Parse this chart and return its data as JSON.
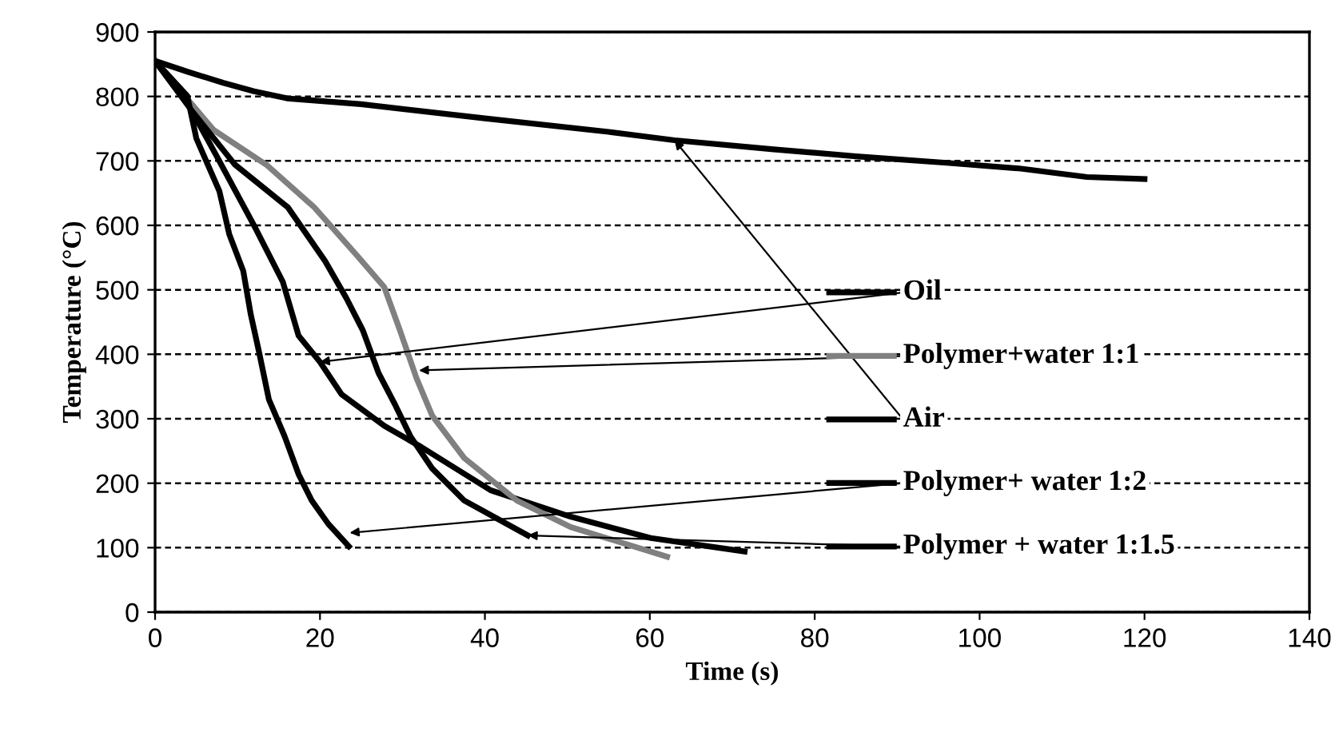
{
  "chart_data": {
    "type": "line",
    "xlabel": "Time (s)",
    "ylabel": "Temperature (°C)",
    "xlim": [
      0,
      140
    ],
    "xticks": [
      0,
      20,
      40,
      60,
      80,
      100,
      120,
      140
    ],
    "ylim": [
      0,
      900
    ],
    "yticks": [
      0,
      100,
      200,
      300,
      400,
      500,
      600,
      700,
      800,
      900
    ],
    "grid": "y",
    "line_style": "solid",
    "marker": "none",
    "series": [
      {
        "color": "#000000",
        "x": [
          0,
          3.8,
          7.7,
          12.2,
          15.5,
          17.4,
          20,
          22.6,
          27.8,
          32.3,
          40.7,
          50.4,
          60.1,
          71.5
        ],
        "values": [
          855,
          793,
          702,
          595,
          512,
          429,
          388,
          338,
          289,
          256,
          189,
          148,
          115,
          94
        ]
      },
      {
        "color": "#808080",
        "x": [
          0,
          7.1,
          13.5,
          19.3,
          24.5,
          27.8,
          29.7,
          31.7,
          33.6,
          37.5,
          43.9,
          50.4,
          62.1
        ],
        "values": [
          855,
          748,
          694,
          628,
          553,
          504,
          437,
          363,
          305,
          239,
          173,
          132,
          86
        ]
      },
      {
        "color": "#000000",
        "x": [
          0,
          4,
          8.3,
          12,
          16,
          25,
          40,
          55,
          63,
          75,
          85,
          96,
          105,
          113,
          120
        ],
        "values": [
          855,
          838,
          821,
          808,
          797,
          788,
          766,
          745,
          732,
          718,
          707,
          697,
          688,
          675,
          672
        ]
      },
      {
        "color": "#000000",
        "x": [
          0,
          3.9,
          5,
          7.8,
          9,
          10.7,
          11.6,
          12.6,
          13.8,
          15.7,
          17.4,
          19,
          21,
          23.5
        ],
        "values": [
          855,
          801,
          735,
          653,
          586,
          529,
          462,
          404,
          330,
          273,
          214,
          173,
          137,
          102
        ]
      },
      {
        "color": "#000000",
        "x": [
          0,
          4.5,
          9.7,
          16.1,
          20.6,
          23.2,
          25.2,
          27.1,
          29.1,
          31,
          33.6,
          37.5,
          45.2
        ],
        "values": [
          855,
          777,
          694,
          628,
          545,
          487,
          437,
          371,
          322,
          272,
          223,
          173,
          119
        ]
      }
    ],
    "annotations": [
      {
        "text": "Oil",
        "x": 20,
        "y": 388
      },
      {
        "text": "Polymer+water 1:1",
        "x": 32,
        "y": 375
      },
      {
        "text": "Air",
        "x": 63,
        "y": 732
      },
      {
        "text": "Polymer+ water 1:2",
        "x": 23.6,
        "y": 123
      },
      {
        "text": "Polymer + water 1:1.5",
        "x": 45.2,
        "y": 119
      }
    ]
  }
}
